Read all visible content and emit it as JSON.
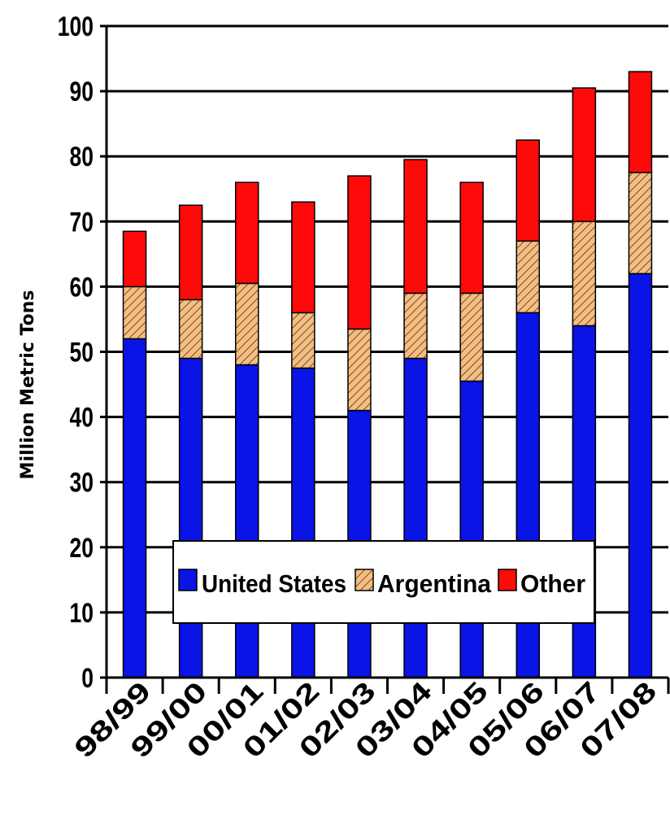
{
  "chart_data": {
    "type": "bar",
    "stacked": true,
    "title": "",
    "xlabel": "",
    "ylabel": "Million Metric Tons",
    "ylim": [
      0,
      100
    ],
    "yticks": [
      0,
      10,
      20,
      30,
      40,
      50,
      60,
      70,
      80,
      90,
      100
    ],
    "grid": true,
    "legend_position": "bottom-center",
    "categories": [
      "98/99",
      "99/00",
      "00/01",
      "01/02",
      "02/03",
      "03/04",
      "04/05",
      "05/06",
      "06/07",
      "07/08"
    ],
    "series": [
      {
        "name": "United States",
        "color": "#0a14e6",
        "pattern": "solid",
        "values": [
          52,
          49,
          48,
          47.5,
          41,
          49,
          45.5,
          56,
          54,
          62
        ]
      },
      {
        "name": "Argentina",
        "color": "#f0b070",
        "pattern": "diagonal-hatch",
        "values": [
          8,
          9,
          12.5,
          8.5,
          12.5,
          10,
          13.5,
          11,
          16,
          15.5
        ]
      },
      {
        "name": "Other",
        "color": "#ff0a0a",
        "pattern": "solid",
        "values": [
          8.5,
          14.5,
          15.5,
          17,
          23.5,
          20.5,
          17,
          15.5,
          20.5,
          15.5
        ]
      }
    ]
  }
}
